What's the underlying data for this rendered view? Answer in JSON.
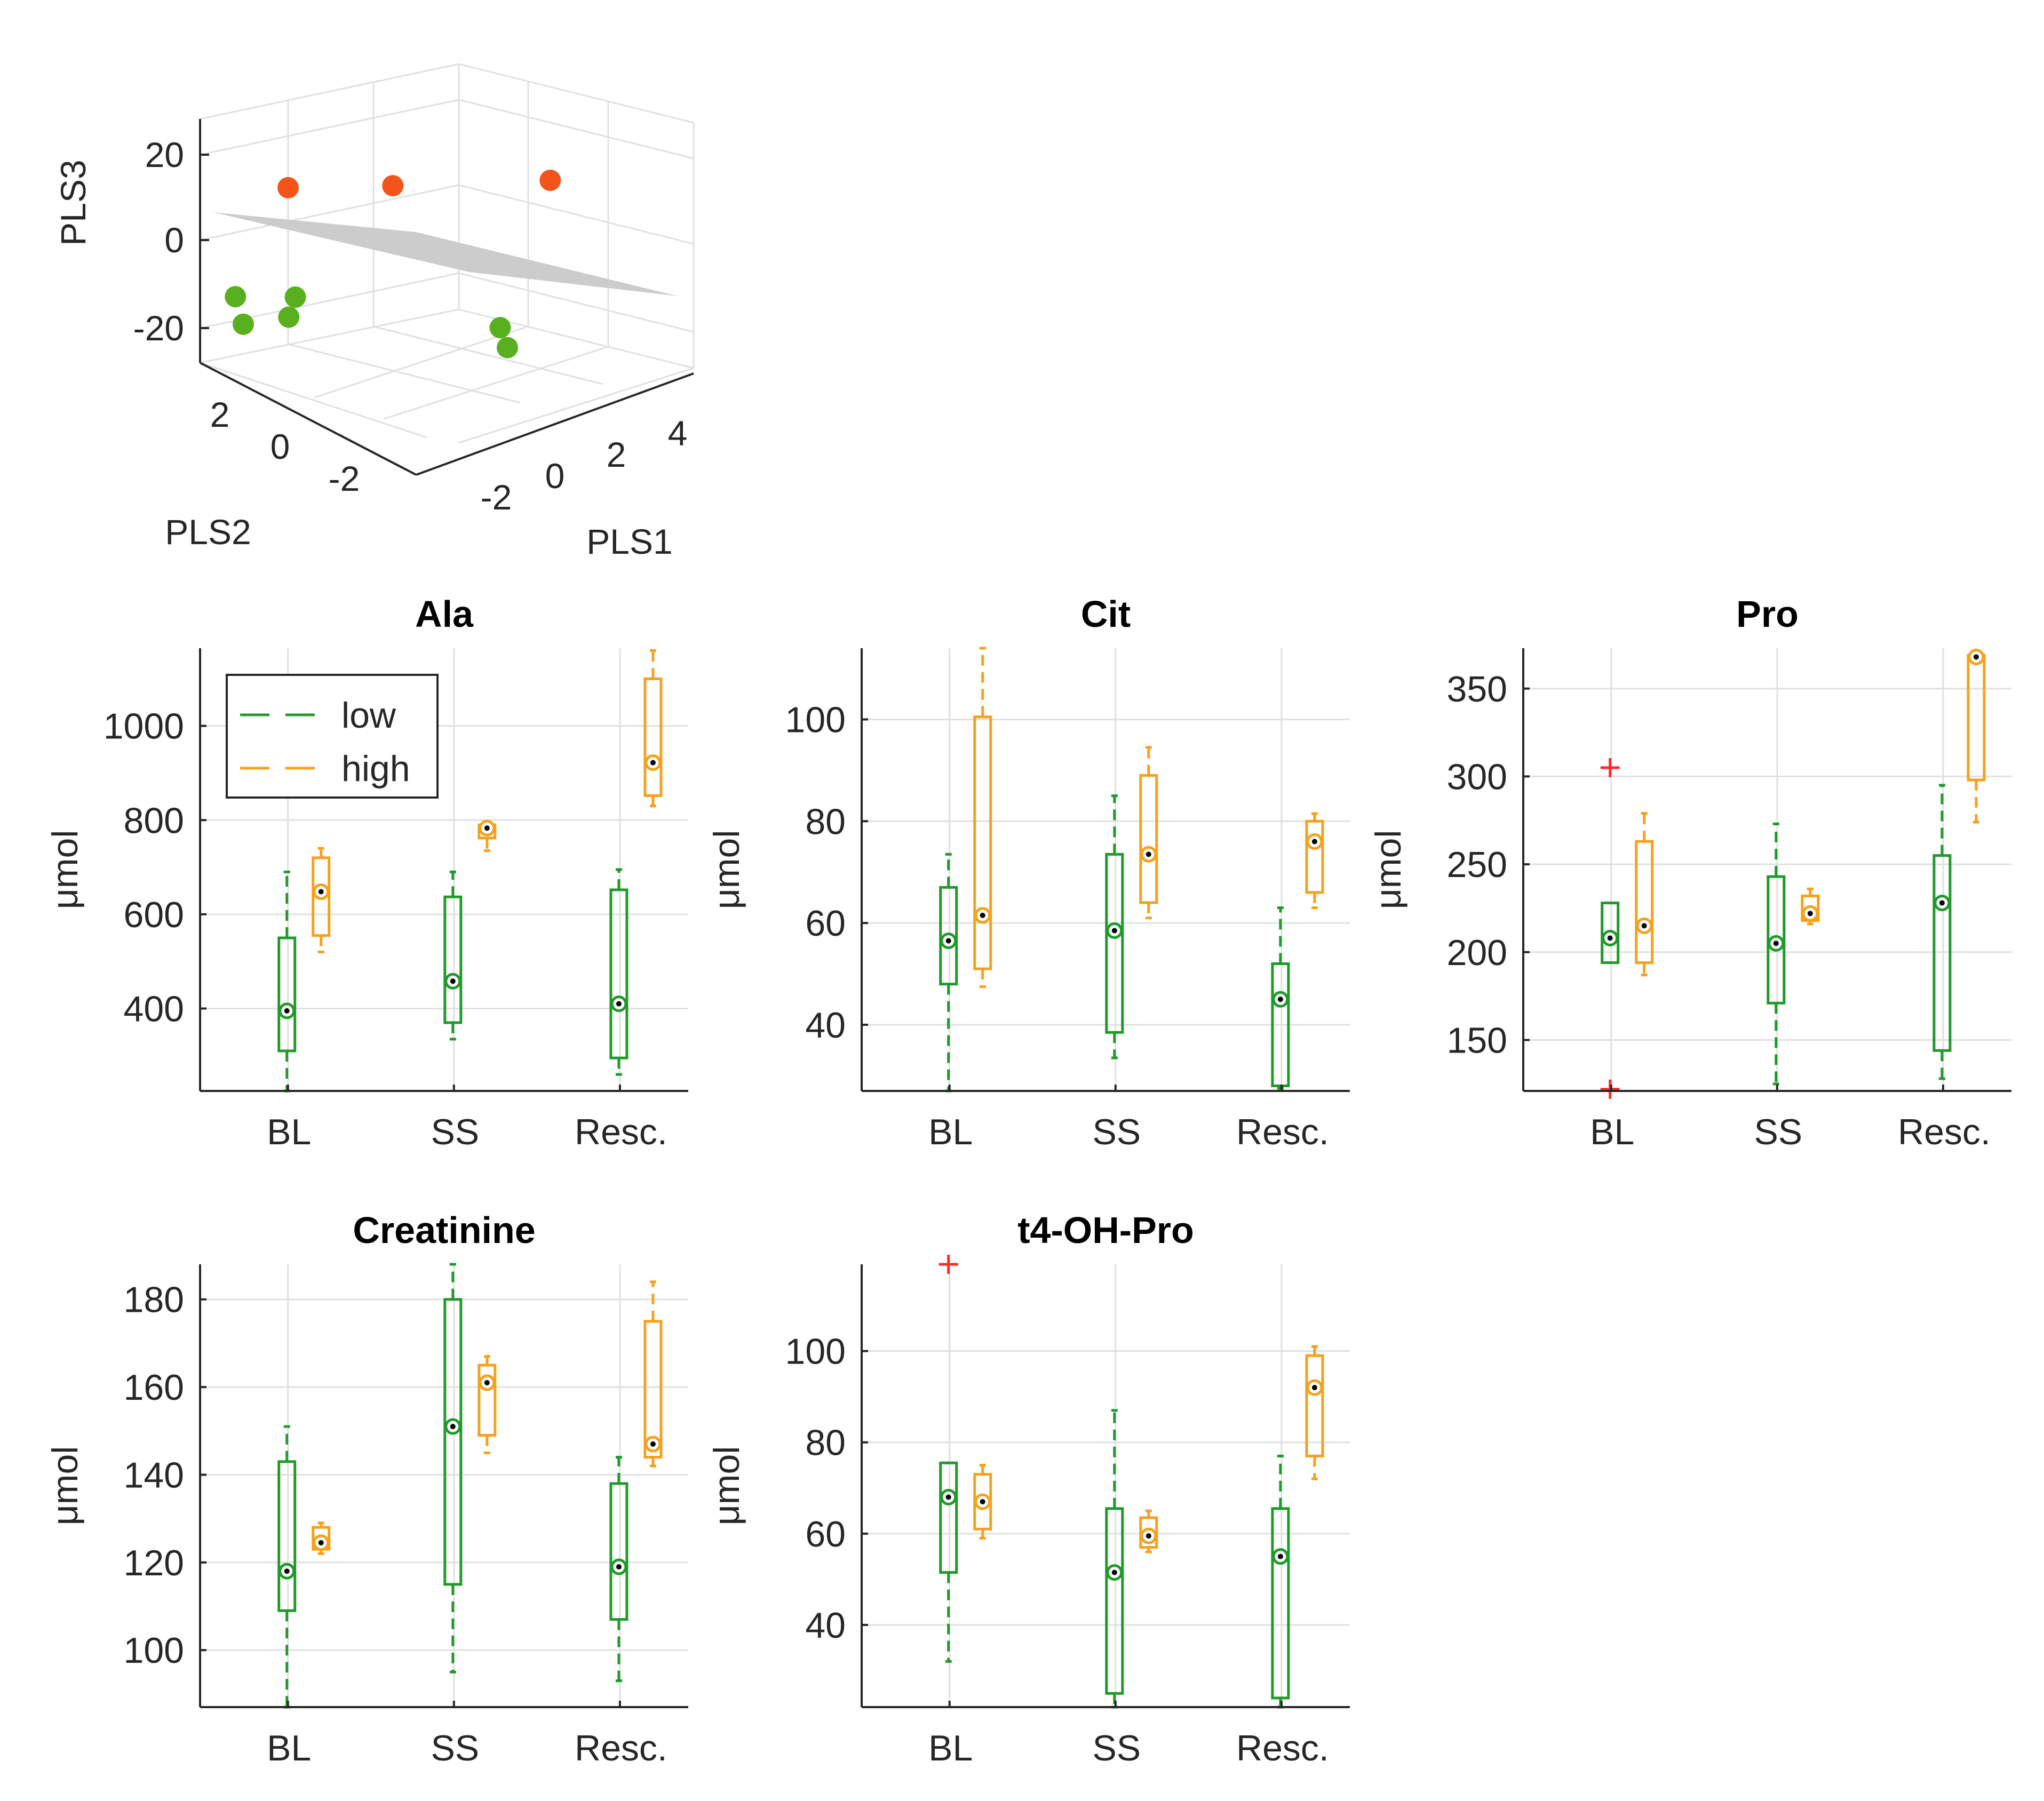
{
  "colors": {
    "low": "#1f9a2a",
    "high": "#f7a01b",
    "outlier": "#ff2b2b",
    "scatter_high": "#f4531a",
    "scatter_low": "#58b01e",
    "plane": "#cccccc",
    "grid": "#e0e0e0",
    "axis": "#262626",
    "text": "#262626"
  },
  "chart_data": [
    {
      "type": "scatter3d",
      "title": "",
      "xlabel": "PLS1",
      "ylabel": "PLS2",
      "zlabel": "PLS3",
      "x_ticks": [
        "-2",
        "0",
        "2",
        "4"
      ],
      "y_ticks": [
        "2",
        "0",
        "-2"
      ],
      "z_ticks": [
        "20",
        "0",
        "-20"
      ],
      "series": [
        {
          "name": "high",
          "color": "#f4531a",
          "points": [
            [
              -1.5,
              2.0,
              13
            ],
            [
              1.0,
              1.5,
              8
            ],
            [
              4.5,
              0.5,
              3
            ]
          ]
        },
        {
          "name": "low",
          "color": "#58b01e",
          "points": [
            [
              -3.0,
              1.8,
              -15
            ],
            [
              -2.5,
              2.5,
              -13
            ],
            [
              -2.0,
              1.5,
              -15
            ],
            [
              -1.5,
              1.8,
              -13
            ],
            [
              1.5,
              -1.0,
              -17
            ],
            [
              1.5,
              -1.2,
              -21
            ]
          ]
        }
      ],
      "decision_plane": true
    },
    {
      "type": "box",
      "title": "Ala",
      "ylabel": "μmol",
      "categories": [
        "BL",
        "SS",
        "Resc."
      ],
      "yticks": [
        400,
        600,
        800,
        1000
      ],
      "ylim": [
        225,
        1165
      ],
      "legend": {
        "entries": [
          "low",
          "high"
        ],
        "location": "top-left"
      },
      "series": [
        {
          "name": "low",
          "boxes": [
            {
              "q1": 310,
              "median": 395,
              "q3": 550,
              "whisker_low": 225,
              "whisker_high": 690,
              "outliers": []
            },
            {
              "q1": 370,
              "median": 458,
              "q3": 637,
              "whisker_low": 335,
              "whisker_high": 690,
              "outliers": []
            },
            {
              "q1": 295,
              "median": 410,
              "q3": 652,
              "whisker_low": 260,
              "whisker_high": 695,
              "outliers": []
            }
          ]
        },
        {
          "name": "high",
          "boxes": [
            {
              "q1": 555,
              "median": 648,
              "q3": 720,
              "whisker_low": 520,
              "whisker_high": 740,
              "outliers": []
            },
            {
              "q1": 762,
              "median": 783,
              "q3": 790,
              "whisker_low": 735,
              "whisker_high": 795,
              "outliers": []
            },
            {
              "q1": 852,
              "median": 922,
              "q3": 1100,
              "whisker_low": 830,
              "whisker_high": 1160,
              "outliers": []
            }
          ]
        }
      ]
    },
    {
      "type": "box",
      "title": "Cit",
      "ylabel": "μmol",
      "categories": [
        "BL",
        "SS",
        "Resc."
      ],
      "yticks": [
        40,
        60,
        80,
        100
      ],
      "ylim": [
        27,
        114
      ],
      "series": [
        {
          "name": "low",
          "boxes": [
            {
              "q1": 48,
              "median": 56.5,
              "q3": 67,
              "whisker_low": 27,
              "whisker_high": 73.5,
              "outliers": []
            },
            {
              "q1": 38.5,
              "median": 58.5,
              "q3": 73.5,
              "whisker_low": 33.5,
              "whisker_high": 85,
              "outliers": []
            },
            {
              "q1": 28,
              "median": 45,
              "q3": 52,
              "whisker_low": 27.5,
              "whisker_high": 63,
              "outliers": []
            }
          ]
        },
        {
          "name": "high",
          "boxes": [
            {
              "q1": 51,
              "median": 61.5,
              "q3": 100.5,
              "whisker_low": 47.5,
              "whisker_high": 114,
              "outliers": []
            },
            {
              "q1": 64,
              "median": 73.5,
              "q3": 89,
              "whisker_low": 61,
              "whisker_high": 94.5,
              "outliers": []
            },
            {
              "q1": 66,
              "median": 76,
              "q3": 80,
              "whisker_low": 63,
              "whisker_high": 81.5,
              "outliers": []
            }
          ]
        }
      ]
    },
    {
      "type": "box",
      "title": "Pro",
      "ylabel": "μmol",
      "categories": [
        "BL",
        "SS",
        "Resc."
      ],
      "yticks": [
        150,
        200,
        250,
        300,
        350
      ],
      "ylim": [
        121,
        373
      ],
      "series": [
        {
          "name": "low",
          "boxes": [
            {
              "q1": 194,
              "median": 208,
              "q3": 228,
              "whisker_low": 194,
              "whisker_high": 228,
              "outliers": [
                305,
                122
              ]
            },
            {
              "q1": 171,
              "median": 205,
              "q3": 243,
              "whisker_low": 125,
              "whisker_high": 273,
              "outliers": []
            },
            {
              "q1": 144,
              "median": 228,
              "q3": 255,
              "whisker_low": 128,
              "whisker_high": 295,
              "outliers": []
            }
          ]
        },
        {
          "name": "high",
          "boxes": [
            {
              "q1": 194,
              "median": 215,
              "q3": 263,
              "whisker_low": 187,
              "whisker_high": 279,
              "outliers": []
            },
            {
              "q1": 218,
              "median": 222,
              "q3": 232,
              "whisker_low": 216,
              "whisker_high": 236,
              "outliers": []
            },
            {
              "q1": 298,
              "median": 368,
              "q3": 369,
              "whisker_low": 274,
              "whisker_high": 370,
              "outliers": []
            }
          ]
        }
      ]
    },
    {
      "type": "box",
      "title": "Creatinine",
      "ylabel": "μmol",
      "categories": [
        "BL",
        "SS",
        "Resc."
      ],
      "yticks": [
        100,
        120,
        140,
        160,
        180
      ],
      "ylim": [
        87,
        188
      ],
      "series": [
        {
          "name": "low",
          "boxes": [
            {
              "q1": 109,
              "median": 118,
              "q3": 143,
              "whisker_low": 87,
              "whisker_high": 151,
              "outliers": []
            },
            {
              "q1": 115,
              "median": 151,
              "q3": 180,
              "whisker_low": 95,
              "whisker_high": 188,
              "outliers": []
            },
            {
              "q1": 107,
              "median": 119,
              "q3": 138,
              "whisker_low": 93,
              "whisker_high": 144,
              "outliers": []
            }
          ]
        },
        {
          "name": "high",
          "boxes": [
            {
              "q1": 123,
              "median": 124.5,
              "q3": 128,
              "whisker_low": 122,
              "whisker_high": 129,
              "outliers": []
            },
            {
              "q1": 149,
              "median": 161,
              "q3": 165,
              "whisker_low": 145,
              "whisker_high": 167,
              "outliers": []
            },
            {
              "q1": 144,
              "median": 147,
              "q3": 175,
              "whisker_low": 142,
              "whisker_high": 184,
              "outliers": []
            }
          ]
        }
      ]
    },
    {
      "type": "box",
      "title": "t4-OH-Pro",
      "ylabel": "μmol",
      "categories": [
        "BL",
        "SS",
        "Resc."
      ],
      "yticks": [
        40,
        60,
        80,
        100
      ],
      "ylim": [
        22,
        119
      ],
      "series": [
        {
          "name": "low",
          "boxes": [
            {
              "q1": 51.5,
              "median": 68,
              "q3": 75.5,
              "whisker_low": 32,
              "whisker_high": 75.5,
              "outliers": [
                119
              ]
            },
            {
              "q1": 25,
              "median": 51.5,
              "q3": 65.5,
              "whisker_low": 22,
              "whisker_high": 87,
              "outliers": []
            },
            {
              "q1": 24,
              "median": 55,
              "q3": 65.5,
              "whisker_low": 22,
              "whisker_high": 77,
              "outliers": []
            }
          ]
        },
        {
          "name": "high",
          "boxes": [
            {
              "q1": 61,
              "median": 67,
              "q3": 73,
              "whisker_low": 59,
              "whisker_high": 75,
              "outliers": []
            },
            {
              "q1": 57,
              "median": 59.5,
              "q3": 63.5,
              "whisker_low": 56,
              "whisker_high": 65,
              "outliers": []
            },
            {
              "q1": 77,
              "median": 92,
              "q3": 99,
              "whisker_low": 72,
              "whisker_high": 101,
              "outliers": []
            }
          ]
        }
      ]
    }
  ]
}
